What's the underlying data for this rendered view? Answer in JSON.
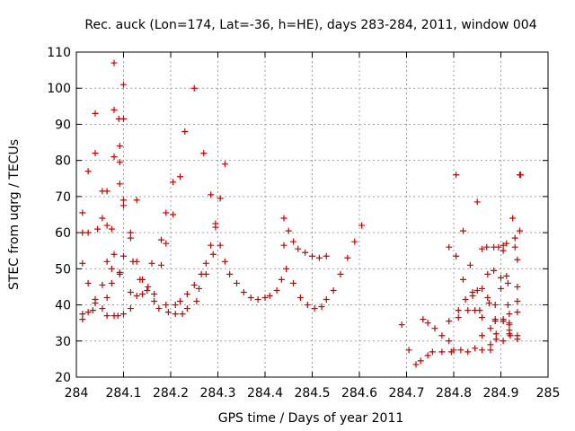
{
  "chart_data": {
    "type": "scatter",
    "title": "Rec. auck (Lon=174, Lat=-36, h=HE), days 283-284, 2011, window 004",
    "xlabel": "GPS time / Days of year 2011",
    "ylabel": "STEC from uqrg / TECUs",
    "xlim": [
      284,
      285
    ],
    "ylim": [
      20,
      110
    ],
    "xticks": [
      284,
      284.1,
      284.2,
      284.3,
      284.4,
      284.5,
      284.6,
      284.7,
      284.8,
      284.9,
      285
    ],
    "xtick_labels": [
      "284",
      "284.1",
      "284.2",
      "284.3",
      "284.4",
      "284.5",
      "284.6",
      "284.7",
      "284.8",
      "284.9",
      "285"
    ],
    "yticks": [
      20,
      30,
      40,
      50,
      60,
      70,
      80,
      90,
      100,
      110
    ],
    "ytick_labels": [
      "20",
      "30",
      "40",
      "50",
      "60",
      "70",
      "80",
      "90",
      "100",
      "110"
    ],
    "grid": true,
    "marker": "plus",
    "color": "#cc0000",
    "points": [
      [
        284.013,
        65.5
      ],
      [
        284.013,
        60
      ],
      [
        284.013,
        51.5
      ],
      [
        284.013,
        37.5
      ],
      [
        284.013,
        36
      ],
      [
        284.025,
        77
      ],
      [
        284.025,
        60
      ],
      [
        284.025,
        46
      ],
      [
        284.025,
        38
      ],
      [
        284.035,
        38.5
      ],
      [
        284.04,
        82
      ],
      [
        284.04,
        93
      ],
      [
        284.04,
        41.5
      ],
      [
        284.04,
        40.5
      ],
      [
        284.045,
        61
      ],
      [
        284.055,
        64
      ],
      [
        284.055,
        45.5
      ],
      [
        284.055,
        39
      ],
      [
        284.055,
        71.5
      ],
      [
        284.065,
        71.5
      ],
      [
        284.065,
        62
      ],
      [
        284.065,
        52
      ],
      [
        284.065,
        42
      ],
      [
        284.065,
        37
      ],
      [
        284.075,
        61
      ],
      [
        284.075,
        50
      ],
      [
        284.075,
        46
      ],
      [
        284.08,
        107
      ],
      [
        284.08,
        94
      ],
      [
        284.08,
        81
      ],
      [
        284.08,
        54
      ],
      [
        284.08,
        37
      ],
      [
        284.088,
        37
      ],
      [
        284.09,
        91.5
      ],
      [
        284.092,
        84
      ],
      [
        284.092,
        79.5
      ],
      [
        284.092,
        73.5
      ],
      [
        284.092,
        49
      ],
      [
        284.092,
        48.5
      ],
      [
        284.1,
        101
      ],
      [
        284.1,
        91.5
      ],
      [
        284.1,
        69
      ],
      [
        284.1,
        67.5
      ],
      [
        284.1,
        53.5
      ],
      [
        284.1,
        37.5
      ],
      [
        284.115,
        60
      ],
      [
        284.115,
        58.5
      ],
      [
        284.115,
        43.5
      ],
      [
        284.115,
        39
      ],
      [
        284.12,
        52
      ],
      [
        284.128,
        69
      ],
      [
        284.128,
        52
      ],
      [
        284.128,
        42.5
      ],
      [
        284.135,
        47
      ],
      [
        284.14,
        47
      ],
      [
        284.14,
        43
      ],
      [
        284.15,
        44
      ],
      [
        284.152,
        45
      ],
      [
        284.16,
        51.5
      ],
      [
        284.165,
        43
      ],
      [
        284.165,
        41
      ],
      [
        284.175,
        39
      ],
      [
        284.18,
        51
      ],
      [
        284.18,
        58
      ],
      [
        284.19,
        57
      ],
      [
        284.19,
        65.5
      ],
      [
        284.19,
        40
      ],
      [
        284.195,
        38
      ],
      [
        284.205,
        74
      ],
      [
        284.205,
        65
      ],
      [
        284.21,
        40
      ],
      [
        284.21,
        37.5
      ],
      [
        284.22,
        75.5
      ],
      [
        284.22,
        41
      ],
      [
        284.225,
        37.5
      ],
      [
        284.23,
        88
      ],
      [
        284.235,
        43
      ],
      [
        284.235,
        39
      ],
      [
        284.25,
        100
      ],
      [
        284.25,
        45.5
      ],
      [
        284.255,
        41
      ],
      [
        284.26,
        44.5
      ],
      [
        284.265,
        48.5
      ],
      [
        284.27,
        82
      ],
      [
        284.275,
        48.5
      ],
      [
        284.275,
        51.5
      ],
      [
        284.285,
        70.5
      ],
      [
        284.285,
        56.5
      ],
      [
        284.29,
        54
      ],
      [
        284.295,
        62.5
      ],
      [
        284.295,
        61.5
      ],
      [
        284.305,
        69.5
      ],
      [
        284.305,
        56.5
      ],
      [
        284.315,
        79
      ],
      [
        284.315,
        52
      ],
      [
        284.325,
        48.5
      ],
      [
        284.34,
        46
      ],
      [
        284.355,
        43.5
      ],
      [
        284.37,
        42
      ],
      [
        284.385,
        41.5
      ],
      [
        284.4,
        42
      ],
      [
        284.41,
        42.5
      ],
      [
        284.425,
        44
      ],
      [
        284.435,
        47
      ],
      [
        284.44,
        64
      ],
      [
        284.44,
        56.5
      ],
      [
        284.445,
        50
      ],
      [
        284.45,
        60.5
      ],
      [
        284.46,
        57.5
      ],
      [
        284.46,
        46
      ],
      [
        284.47,
        55.5
      ],
      [
        284.475,
        42
      ],
      [
        284.485,
        54.5
      ],
      [
        284.49,
        40
      ],
      [
        284.5,
        53.5
      ],
      [
        284.505,
        39
      ],
      [
        284.515,
        53
      ],
      [
        284.52,
        39.5
      ],
      [
        284.53,
        53.5
      ],
      [
        284.53,
        41.5
      ],
      [
        284.545,
        44
      ],
      [
        284.56,
        48.5
      ],
      [
        284.575,
        53
      ],
      [
        284.59,
        57.5
      ],
      [
        284.605,
        62
      ],
      [
        284.69,
        34.5
      ],
      [
        284.705,
        27.5
      ],
      [
        284.72,
        23.5
      ],
      [
        284.73,
        24.5
      ],
      [
        284.735,
        36
      ],
      [
        284.745,
        35
      ],
      [
        284.745,
        26
      ],
      [
        284.755,
        27
      ],
      [
        284.76,
        33.5
      ],
      [
        284.775,
        27
      ],
      [
        284.775,
        31.5
      ],
      [
        284.79,
        56
      ],
      [
        284.79,
        35.5
      ],
      [
        284.79,
        30
      ],
      [
        284.795,
        27
      ],
      [
        284.8,
        27.5
      ],
      [
        284.805,
        76
      ],
      [
        284.805,
        53.5
      ],
      [
        284.81,
        38.5
      ],
      [
        284.81,
        36.5
      ],
      [
        284.815,
        27.5
      ],
      [
        284.82,
        60.5
      ],
      [
        284.82,
        47
      ],
      [
        284.825,
        41.5
      ],
      [
        284.83,
        38.5
      ],
      [
        284.83,
        27
      ],
      [
        284.835,
        51
      ],
      [
        284.84,
        43.5
      ],
      [
        284.84,
        42.5
      ],
      [
        284.845,
        38.5
      ],
      [
        284.845,
        28
      ],
      [
        284.85,
        68.5
      ],
      [
        284.85,
        44
      ],
      [
        284.855,
        38.5
      ],
      [
        284.86,
        55.5
      ],
      [
        284.86,
        44.5
      ],
      [
        284.86,
        36.5
      ],
      [
        284.86,
        31.5
      ],
      [
        284.86,
        27.5
      ],
      [
        284.87,
        56
      ],
      [
        284.872,
        48.5
      ],
      [
        284.872,
        42
      ],
      [
        284.875,
        40.5
      ],
      [
        284.878,
        33.5
      ],
      [
        284.878,
        29
      ],
      [
        284.878,
        27.5
      ],
      [
        284.885,
        56
      ],
      [
        284.885,
        49.5
      ],
      [
        284.888,
        40
      ],
      [
        284.888,
        36
      ],
      [
        284.888,
        35.5
      ],
      [
        284.89,
        32
      ],
      [
        284.89,
        30.5
      ],
      [
        284.895,
        56
      ],
      [
        284.9,
        47.5
      ],
      [
        284.9,
        44.5
      ],
      [
        284.905,
        56.5
      ],
      [
        284.905,
        55
      ],
      [
        284.905,
        36
      ],
      [
        284.905,
        35.5
      ],
      [
        284.905,
        30
      ],
      [
        284.912,
        57
      ],
      [
        284.912,
        48
      ],
      [
        284.915,
        46
      ],
      [
        284.915,
        40
      ],
      [
        284.918,
        37.5
      ],
      [
        284.918,
        35
      ],
      [
        284.918,
        34.5
      ],
      [
        284.918,
        33
      ],
      [
        284.918,
        32
      ],
      [
        284.92,
        31.5
      ],
      [
        284.925,
        64
      ],
      [
        284.93,
        58.5
      ],
      [
        284.93,
        56
      ],
      [
        284.935,
        52.5
      ],
      [
        284.935,
        45
      ],
      [
        284.935,
        41
      ],
      [
        284.935,
        38
      ],
      [
        284.935,
        31.5
      ],
      [
        284.935,
        30.5
      ],
      [
        284.94,
        76
      ],
      [
        284.942,
        76
      ],
      [
        284.94,
        60.5
      ]
    ]
  }
}
